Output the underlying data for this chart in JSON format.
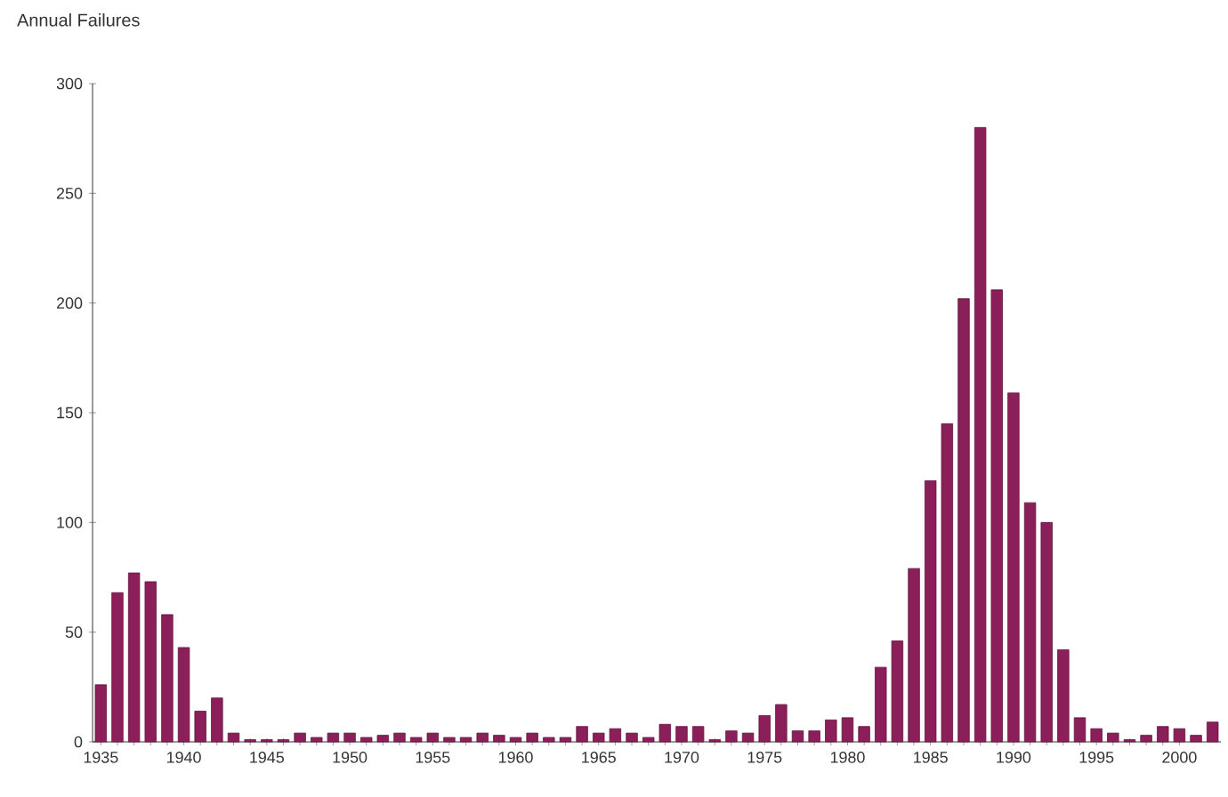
{
  "chart_data": {
    "type": "bar",
    "ylabel": "Annual Failures",
    "x": [
      1935,
      1936,
      1937,
      1938,
      1939,
      1940,
      1941,
      1942,
      1943,
      1944,
      1945,
      1946,
      1947,
      1948,
      1949,
      1950,
      1951,
      1952,
      1953,
      1954,
      1955,
      1956,
      1957,
      1958,
      1959,
      1960,
      1961,
      1962,
      1963,
      1964,
      1965,
      1966,
      1967,
      1968,
      1969,
      1970,
      1971,
      1972,
      1973,
      1974,
      1975,
      1976,
      1977,
      1978,
      1979,
      1980,
      1981,
      1982,
      1983,
      1984,
      1985,
      1986,
      1987,
      1988,
      1989,
      1990,
      1991,
      1992,
      1993,
      1994,
      1995,
      1996,
      1997,
      1998,
      1999,
      2000,
      2001,
      2002
    ],
    "values": [
      26,
      68,
      77,
      73,
      58,
      43,
      14,
      20,
      4,
      1,
      1,
      1,
      4,
      2,
      4,
      4,
      2,
      3,
      4,
      2,
      4,
      2,
      2,
      4,
      3,
      2,
      4,
      2,
      2,
      7,
      4,
      6,
      4,
      2,
      8,
      7,
      7,
      1,
      5,
      4,
      12,
      17,
      5,
      5,
      10,
      11,
      7,
      34,
      46,
      79,
      119,
      145,
      202,
      280,
      206,
      159,
      109,
      100,
      42,
      11,
      6,
      4,
      1,
      3,
      7,
      6,
      3,
      9
    ],
    "color": "#8b1f5a",
    "xlim": [
      1934.5,
      2002.5
    ],
    "xticks": [
      1935,
      1940,
      1945,
      1950,
      1955,
      1960,
      1965,
      1970,
      1975,
      1980,
      1985,
      1990,
      1995,
      2000
    ],
    "ylim": [
      0,
      300
    ],
    "yticks": [
      0,
      50,
      100,
      150,
      200,
      250,
      300
    ]
  }
}
